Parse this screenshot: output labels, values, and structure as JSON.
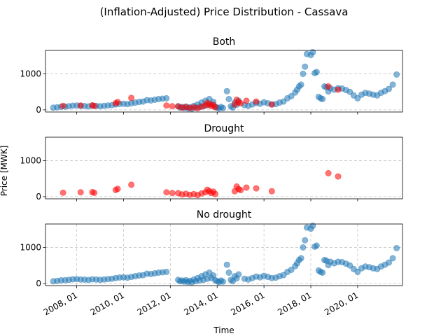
{
  "figure": {
    "suptitle": "(Inflation-Adjusted) Price Distribution - Cassava",
    "ylabel": "Price [MWK]",
    "xlabel": "Time"
  },
  "colors": {
    "no_drought": "#1f77b4",
    "drought": "#ff0000",
    "grid": "#b0b0b0"
  },
  "chart_data": [
    {
      "type": "scatter",
      "title": "Both",
      "ylim": [
        -60,
        1650
      ],
      "yticks": [
        0,
        1000
      ],
      "grid": true,
      "series": []
    },
    {
      "type": "scatter",
      "title": "Drought",
      "ylim": [
        -60,
        1650
      ],
      "yticks": [
        0,
        1000
      ],
      "grid": true,
      "series": [
        {
          "points": [
            [
              "2007-06",
              110
            ],
            [
              "2008-03",
              120
            ],
            [
              "2008-09",
              125
            ],
            [
              "2008-10",
              105
            ],
            [
              "2009-09",
              185
            ],
            [
              "2009-10",
              215
            ],
            [
              "2010-05",
              330
            ],
            [
              "2011-11",
              120
            ],
            [
              "2012-02",
              100
            ],
            [
              "2012-05",
              95
            ],
            [
              "2012-07",
              60
            ],
            [
              "2012-09",
              80
            ],
            [
              "2012-11",
              50
            ],
            [
              "2013-01",
              70
            ],
            [
              "2013-03",
              45
            ],
            [
              "2013-05",
              90
            ],
            [
              "2013-07",
              120
            ],
            [
              "2013-08",
              190
            ],
            [
              "2013-09",
              150
            ],
            [
              "2013-10",
              100
            ],
            [
              "2013-11",
              140
            ],
            [
              "2013-12",
              75
            ],
            [
              "2014-10",
              150
            ],
            [
              "2014-11",
              280
            ],
            [
              "2014-12",
              210
            ],
            [
              "2015-01",
              180
            ],
            [
              "2015-04",
              250
            ],
            [
              "2015-09",
              230
            ],
            [
              "2016-05",
              150
            ],
            [
              "2018-10",
              650
            ],
            [
              "2019-03",
              560
            ]
          ]
        }
      ]
    },
    {
      "type": "scatter",
      "title": "No drought",
      "ylim": [
        -60,
        1650
      ],
      "yticks": [
        0,
        1000
      ],
      "xticks": [
        "2008, 01",
        "2010, 01",
        "2012, 01",
        "2014, 01",
        "2016, 01",
        "2018, 01",
        "2020, 01"
      ],
      "grid": true,
      "series": [
        {
          "points": [
            [
              "2007-01",
              60
            ],
            [
              "2007-03",
              70
            ],
            [
              "2007-05",
              85
            ],
            [
              "2007-07",
              90
            ],
            [
              "2007-09",
              100
            ],
            [
              "2007-11",
              115
            ],
            [
              "2008-01",
              120
            ],
            [
              "2008-03",
              110
            ],
            [
              "2008-05",
              105
            ],
            [
              "2008-07",
              95
            ],
            [
              "2008-09",
              115
            ],
            [
              "2008-11",
              110
            ],
            [
              "2009-01",
              100
            ],
            [
              "2009-03",
              110
            ],
            [
              "2009-05",
              120
            ],
            [
              "2009-07",
              130
            ],
            [
              "2009-09",
              150
            ],
            [
              "2009-11",
              165
            ],
            [
              "2010-01",
              170
            ],
            [
              "2010-03",
              160
            ],
            [
              "2010-05",
              180
            ],
            [
              "2010-07",
              200
            ],
            [
              "2010-09",
              220
            ],
            [
              "2010-11",
              230
            ],
            [
              "2011-01",
              270
            ],
            [
              "2011-03",
              260
            ],
            [
              "2011-05",
              280
            ],
            [
              "2011-07",
              300
            ],
            [
              "2011-09",
              310
            ],
            [
              "2011-11",
              320
            ],
            [
              "2012-05",
              100
            ],
            [
              "2012-06",
              60
            ],
            [
              "2012-07",
              80
            ],
            [
              "2012-08",
              50
            ],
            [
              "2012-09",
              90
            ],
            [
              "2012-10",
              40
            ],
            [
              "2012-11",
              70
            ],
            [
              "2012-12",
              30
            ],
            [
              "2013-01",
              110
            ],
            [
              "2013-02",
              60
            ],
            [
              "2013-03",
              150
            ],
            [
              "2013-04",
              80
            ],
            [
              "2013-05",
              200
            ],
            [
              "2013-06",
              100
            ],
            [
              "2013-07",
              250
            ],
            [
              "2013-08",
              130
            ],
            [
              "2013-09",
              300
            ],
            [
              "2013-10",
              150
            ],
            [
              "2013-11",
              220
            ],
            [
              "2013-12",
              90
            ],
            [
              "2014-01",
              60
            ],
            [
              "2014-02",
              40
            ],
            [
              "2014-03",
              80
            ],
            [
              "2014-04",
              50
            ],
            [
              "2014-06",
              520
            ],
            [
              "2014-07",
              300
            ],
            [
              "2014-08",
              100
            ],
            [
              "2014-09",
              60
            ],
            [
              "2014-10",
              200
            ],
            [
              "2014-11",
              140
            ],
            [
              "2014-12",
              250
            ],
            [
              "2015-03",
              130
            ],
            [
              "2015-05",
              110
            ],
            [
              "2015-07",
              150
            ],
            [
              "2015-09",
              190
            ],
            [
              "2015-11",
              170
            ],
            [
              "2016-01",
              210
            ],
            [
              "2016-03",
              180
            ],
            [
              "2016-05",
              150
            ],
            [
              "2016-07",
              160
            ],
            [
              "2016-09",
              200
            ],
            [
              "2016-11",
              230
            ],
            [
              "2017-01",
              320
            ],
            [
              "2017-03",
              380
            ],
            [
              "2017-05",
              480
            ],
            [
              "2017-06",
              560
            ],
            [
              "2017-07",
              650
            ],
            [
              "2017-08",
              700
            ],
            [
              "2017-09",
              1000
            ],
            [
              "2017-10",
              1200
            ],
            [
              "2017-11",
              1550
            ],
            [
              "2018-01",
              1520
            ],
            [
              "2018-02",
              1600
            ],
            [
              "2018-03",
              1020
            ],
            [
              "2018-04",
              1050
            ],
            [
              "2018-05",
              360
            ],
            [
              "2018-06",
              320
            ],
            [
              "2018-07",
              300
            ],
            [
              "2018-08",
              650
            ],
            [
              "2018-09",
              630
            ],
            [
              "2018-10",
              510
            ],
            [
              "2018-11",
              600
            ],
            [
              "2019-01",
              560
            ],
            [
              "2019-03",
              600
            ],
            [
              "2019-05",
              590
            ],
            [
              "2019-07",
              550
            ],
            [
              "2019-09",
              500
            ],
            [
              "2019-11",
              400
            ],
            [
              "2020-01",
              320
            ],
            [
              "2020-03",
              420
            ],
            [
              "2020-05",
              470
            ],
            [
              "2020-07",
              450
            ],
            [
              "2020-09",
              420
            ],
            [
              "2020-11",
              400
            ],
            [
              "2021-01",
              470
            ],
            [
              "2021-03",
              520
            ],
            [
              "2021-05",
              580
            ],
            [
              "2021-07",
              700
            ],
            [
              "2021-09",
              980
            ]
          ]
        }
      ]
    }
  ]
}
